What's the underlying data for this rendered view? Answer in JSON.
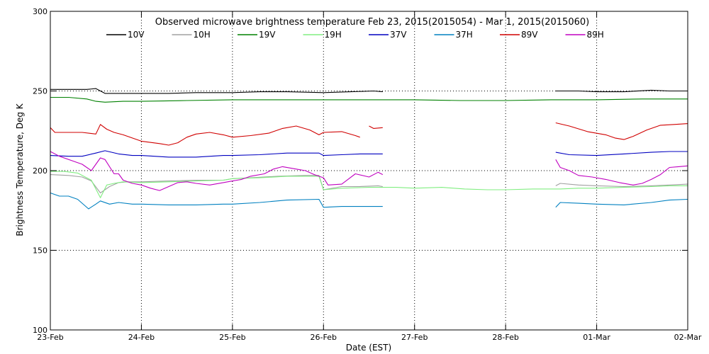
{
  "chart_data": {
    "type": "line",
    "title": "Observed microwave brightness temperature Feb 23, 2015(2015054) - Mar  1, 2015(2015060)",
    "xlabel": "Date (EST)",
    "ylabel": "Brightness Temperature, Deg K",
    "xlim": [
      0,
      7
    ],
    "ylim": [
      100,
      300
    ],
    "x_ticks": [
      {
        "x": 0,
        "label": "23-Feb"
      },
      {
        "x": 1,
        "label": "24-Feb"
      },
      {
        "x": 2,
        "label": "25-Feb"
      },
      {
        "x": 3,
        "label": "26-Feb"
      },
      {
        "x": 4,
        "label": "27-Feb"
      },
      {
        "x": 5,
        "label": "28-Feb"
      },
      {
        "x": 6,
        "label": "01-Mar"
      },
      {
        "x": 7,
        "label": "02-Mar"
      }
    ],
    "y_ticks": [
      100,
      150,
      200,
      250,
      300
    ],
    "grid": "dotted, vertical at each day, horizontal at 150/200/250",
    "legend_position": "top",
    "series": [
      {
        "name": "10V",
        "color": "#000000",
        "segments": [
          [
            [
              0,
              251
            ],
            [
              0.2,
              251
            ],
            [
              0.4,
              251
            ],
            [
              0.5,
              251.5
            ],
            [
              0.6,
              248.5
            ],
            [
              0.8,
              248.5
            ],
            [
              1.0,
              248.5
            ],
            [
              1.3,
              248.5
            ],
            [
              1.6,
              249
            ],
            [
              2.0,
              249
            ],
            [
              2.3,
              249.5
            ],
            [
              2.6,
              249.5
            ],
            [
              3.0,
              249
            ],
            [
              3.3,
              249.5
            ],
            [
              3.55,
              250
            ],
            [
              3.65,
              249.5
            ]
          ],
          [
            [
              5.55,
              250
            ],
            [
              5.8,
              250
            ],
            [
              6.0,
              249.5
            ],
            [
              6.3,
              249.5
            ],
            [
              6.6,
              250.5
            ],
            [
              6.8,
              250
            ],
            [
              7.0,
              250
            ]
          ]
        ]
      },
      {
        "name": "10H",
        "color": "#a0a0a0",
        "segments": [
          [
            [
              0,
              197.5
            ],
            [
              0.2,
              197
            ],
            [
              0.35,
              196
            ],
            [
              0.45,
              193.5
            ],
            [
              0.55,
              186
            ],
            [
              0.65,
              190
            ],
            [
              0.75,
              192.5
            ],
            [
              0.85,
              193
            ],
            [
              1.0,
              193
            ],
            [
              1.3,
              193.5
            ],
            [
              1.6,
              194
            ],
            [
              1.9,
              194
            ],
            [
              2.0,
              195
            ],
            [
              2.2,
              195.5
            ],
            [
              2.5,
              196.5
            ],
            [
              2.8,
              197
            ],
            [
              2.95,
              197
            ],
            [
              3.0,
              188
            ],
            [
              3.2,
              190
            ],
            [
              3.4,
              190
            ],
            [
              3.6,
              190.5
            ],
            [
              3.65,
              190
            ]
          ],
          [
            [
              5.55,
              190.5
            ],
            [
              5.6,
              192
            ],
            [
              5.8,
              191
            ],
            [
              6.0,
              190.5
            ],
            [
              6.3,
              190
            ],
            [
              6.6,
              190.5
            ],
            [
              6.8,
              191
            ],
            [
              7.0,
              191.5
            ]
          ]
        ]
      },
      {
        "name": "19V",
        "color": "#008000",
        "segments": [
          [
            [
              0,
              246
            ],
            [
              0.2,
              246
            ],
            [
              0.4,
              245
            ],
            [
              0.5,
              243.5
            ],
            [
              0.6,
              243
            ],
            [
              0.8,
              243.5
            ],
            [
              1.0,
              243.5
            ],
            [
              1.5,
              244
            ],
            [
              2.0,
              244.5
            ],
            [
              2.5,
              244.5
            ],
            [
              3.0,
              244.5
            ],
            [
              3.5,
              244.5
            ],
            [
              4.0,
              244.5
            ],
            [
              4.5,
              244
            ],
            [
              5.0,
              244
            ],
            [
              5.5,
              244.5
            ],
            [
              6.0,
              244.5
            ],
            [
              6.5,
              245
            ],
            [
              7.0,
              245
            ]
          ]
        ]
      },
      {
        "name": "19H",
        "color": "#80ee80",
        "segments": [
          [
            [
              0,
              199.5
            ],
            [
              0.15,
              199.5
            ],
            [
              0.3,
              198.5
            ],
            [
              0.45,
              194
            ],
            [
              0.55,
              183
            ],
            [
              0.62,
              191
            ],
            [
              0.7,
              192
            ],
            [
              0.8,
              193
            ],
            [
              1.0,
              192.5
            ],
            [
              1.3,
              193
            ],
            [
              1.6,
              193.5
            ],
            [
              1.9,
              194
            ],
            [
              2.0,
              195
            ],
            [
              2.3,
              195.5
            ],
            [
              2.6,
              196.5
            ],
            [
              2.95,
              196.5
            ],
            [
              3.0,
              188
            ],
            [
              3.2,
              189
            ],
            [
              3.5,
              189.5
            ],
            [
              3.8,
              189.5
            ],
            [
              4.0,
              189
            ],
            [
              4.3,
              189.5
            ],
            [
              4.55,
              188.5
            ],
            [
              4.8,
              188
            ],
            [
              5.0,
              188
            ],
            [
              5.3,
              188.5
            ],
            [
              5.6,
              188.5
            ],
            [
              5.8,
              189
            ],
            [
              6.0,
              189
            ],
            [
              6.3,
              189.5
            ],
            [
              6.6,
              190
            ],
            [
              6.8,
              190.5
            ],
            [
              7.0,
              190.5
            ]
          ]
        ]
      },
      {
        "name": "37V",
        "color": "#0000c0",
        "segments": [
          [
            [
              0,
              209.5
            ],
            [
              0.2,
              209
            ],
            [
              0.35,
              209
            ],
            [
              0.5,
              211
            ],
            [
              0.6,
              212.5
            ],
            [
              0.75,
              210.5
            ],
            [
              0.9,
              209.5
            ],
            [
              1.0,
              209.5
            ],
            [
              1.3,
              208.5
            ],
            [
              1.6,
              208.5
            ],
            [
              1.9,
              209.5
            ],
            [
              2.0,
              209.5
            ],
            [
              2.3,
              210
            ],
            [
              2.6,
              211
            ],
            [
              2.95,
              211
            ],
            [
              3.0,
              209.5
            ],
            [
              3.2,
              210
            ],
            [
              3.4,
              210.5
            ],
            [
              3.65,
              210.5
            ]
          ],
          [
            [
              5.55,
              211.5
            ],
            [
              5.7,
              210
            ],
            [
              6.0,
              209.5
            ],
            [
              6.3,
              210.5
            ],
            [
              6.6,
              211.5
            ],
            [
              6.8,
              212
            ],
            [
              7.0,
              212
            ]
          ]
        ]
      },
      {
        "name": "37H",
        "color": "#0080c0",
        "segments": [
          [
            [
              0,
              186
            ],
            [
              0.1,
              184
            ],
            [
              0.2,
              184
            ],
            [
              0.3,
              182
            ],
            [
              0.42,
              176
            ],
            [
              0.5,
              179
            ],
            [
              0.55,
              181
            ],
            [
              0.65,
              179
            ],
            [
              0.75,
              180
            ],
            [
              0.9,
              179
            ],
            [
              1.0,
              179
            ],
            [
              1.3,
              178.5
            ],
            [
              1.6,
              178.5
            ],
            [
              1.9,
              179
            ],
            [
              2.0,
              179
            ],
            [
              2.3,
              180
            ],
            [
              2.6,
              181.5
            ],
            [
              2.95,
              182
            ],
            [
              3.0,
              177
            ],
            [
              3.2,
              177.5
            ],
            [
              3.4,
              177.5
            ],
            [
              3.65,
              177.5
            ]
          ],
          [
            [
              5.55,
              177
            ],
            [
              5.6,
              180
            ],
            [
              5.8,
              179.5
            ],
            [
              6.0,
              179
            ],
            [
              6.3,
              178.5
            ],
            [
              6.6,
              180
            ],
            [
              6.8,
              181.5
            ],
            [
              7.0,
              182
            ]
          ]
        ]
      },
      {
        "name": "89V",
        "color": "#d00000",
        "segments": [
          [
            [
              0,
              227
            ],
            [
              0.05,
              224
            ],
            [
              0.2,
              224
            ],
            [
              0.35,
              224
            ],
            [
              0.5,
              223
            ],
            [
              0.55,
              229
            ],
            [
              0.62,
              226
            ],
            [
              0.7,
              224
            ],
            [
              0.8,
              222.5
            ],
            [
              1.0,
              218.5
            ],
            [
              1.2,
              217
            ],
            [
              1.3,
              216
            ],
            [
              1.4,
              217.5
            ],
            [
              1.5,
              221
            ],
            [
              1.6,
              223
            ],
            [
              1.75,
              224
            ],
            [
              1.9,
              222.5
            ],
            [
              2.0,
              221
            ],
            [
              2.2,
              222
            ],
            [
              2.4,
              223.5
            ],
            [
              2.55,
              226.5
            ],
            [
              2.7,
              228
            ],
            [
              2.85,
              225.5
            ],
            [
              2.95,
              222.5
            ],
            [
              3.0,
              224
            ],
            [
              3.2,
              224.5
            ],
            [
              3.35,
              222
            ],
            [
              3.4,
              221
            ]
          ],
          [
            [
              3.5,
              228
            ],
            [
              3.55,
              226.5
            ],
            [
              3.65,
              227
            ]
          ],
          [
            [
              5.55,
              230
            ],
            [
              5.7,
              228
            ],
            [
              5.9,
              224.5
            ],
            [
              6.1,
              222.5
            ],
            [
              6.2,
              220.5
            ],
            [
              6.3,
              219.5
            ],
            [
              6.4,
              221.5
            ],
            [
              6.55,
              225.5
            ],
            [
              6.7,
              228.5
            ],
            [
              6.85,
              229
            ],
            [
              7.0,
              229.5
            ]
          ]
        ]
      },
      {
        "name": "89H",
        "color": "#c000c0",
        "segments": [
          [
            [
              0,
              212
            ],
            [
              0.1,
              209
            ],
            [
              0.25,
              206
            ],
            [
              0.35,
              204
            ],
            [
              0.45,
              200
            ],
            [
              0.55,
              208
            ],
            [
              0.6,
              207
            ],
            [
              0.7,
              198
            ],
            [
              0.75,
              198
            ],
            [
              0.8,
              194
            ],
            [
              0.9,
              192
            ],
            [
              1.0,
              191
            ],
            [
              1.1,
              189
            ],
            [
              1.2,
              187.5
            ],
            [
              1.3,
              190
            ],
            [
              1.4,
              192.5
            ],
            [
              1.5,
              193
            ],
            [
              1.6,
              192
            ],
            [
              1.75,
              191
            ],
            [
              1.9,
              192.5
            ],
            [
              2.0,
              193.5
            ],
            [
              2.1,
              194.5
            ],
            [
              2.2,
              196.5
            ],
            [
              2.35,
              198
            ],
            [
              2.45,
              201
            ],
            [
              2.55,
              202.5
            ],
            [
              2.7,
              201
            ],
            [
              2.8,
              200
            ],
            [
              2.9,
              197.5
            ],
            [
              3.0,
              195.5
            ],
            [
              3.05,
              191
            ],
            [
              3.2,
              191.5
            ],
            [
              3.35,
              198
            ],
            [
              3.5,
              196
            ],
            [
              3.6,
              199
            ],
            [
              3.65,
              197.5
            ]
          ],
          [
            [
              5.55,
              207
            ],
            [
              5.6,
              202
            ],
            [
              5.7,
              200
            ],
            [
              5.8,
              197
            ],
            [
              5.95,
              196
            ],
            [
              6.1,
              194.5
            ],
            [
              6.25,
              192.5
            ],
            [
              6.4,
              191
            ],
            [
              6.5,
              192
            ],
            [
              6.6,
              194.5
            ],
            [
              6.7,
              197.5
            ],
            [
              6.8,
              202
            ],
            [
              6.9,
              202.5
            ],
            [
              7.0,
              203
            ]
          ]
        ]
      }
    ]
  }
}
